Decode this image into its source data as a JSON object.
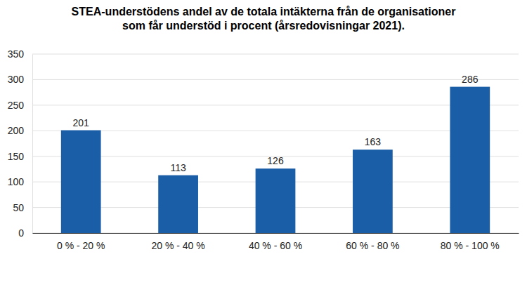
{
  "chart_data": {
    "type": "bar",
    "title": [
      "STEA-understödens andel av de totala intäkterna från de organisationer",
      "som får understöd i procent (årsredovisningar 2021)."
    ],
    "categories": [
      "0 % - 20 %",
      "20 % - 40 %",
      "40 % - 60 %",
      "60 % - 80 %",
      "80 % - 100 %"
    ],
    "values": [
      201,
      113,
      126,
      163,
      286
    ],
    "color": "#1a5ea8",
    "ylim": [
      0,
      350
    ],
    "yticks": [
      0,
      50,
      100,
      150,
      200,
      250,
      300,
      350
    ],
    "grid": true,
    "data_labels": true
  }
}
